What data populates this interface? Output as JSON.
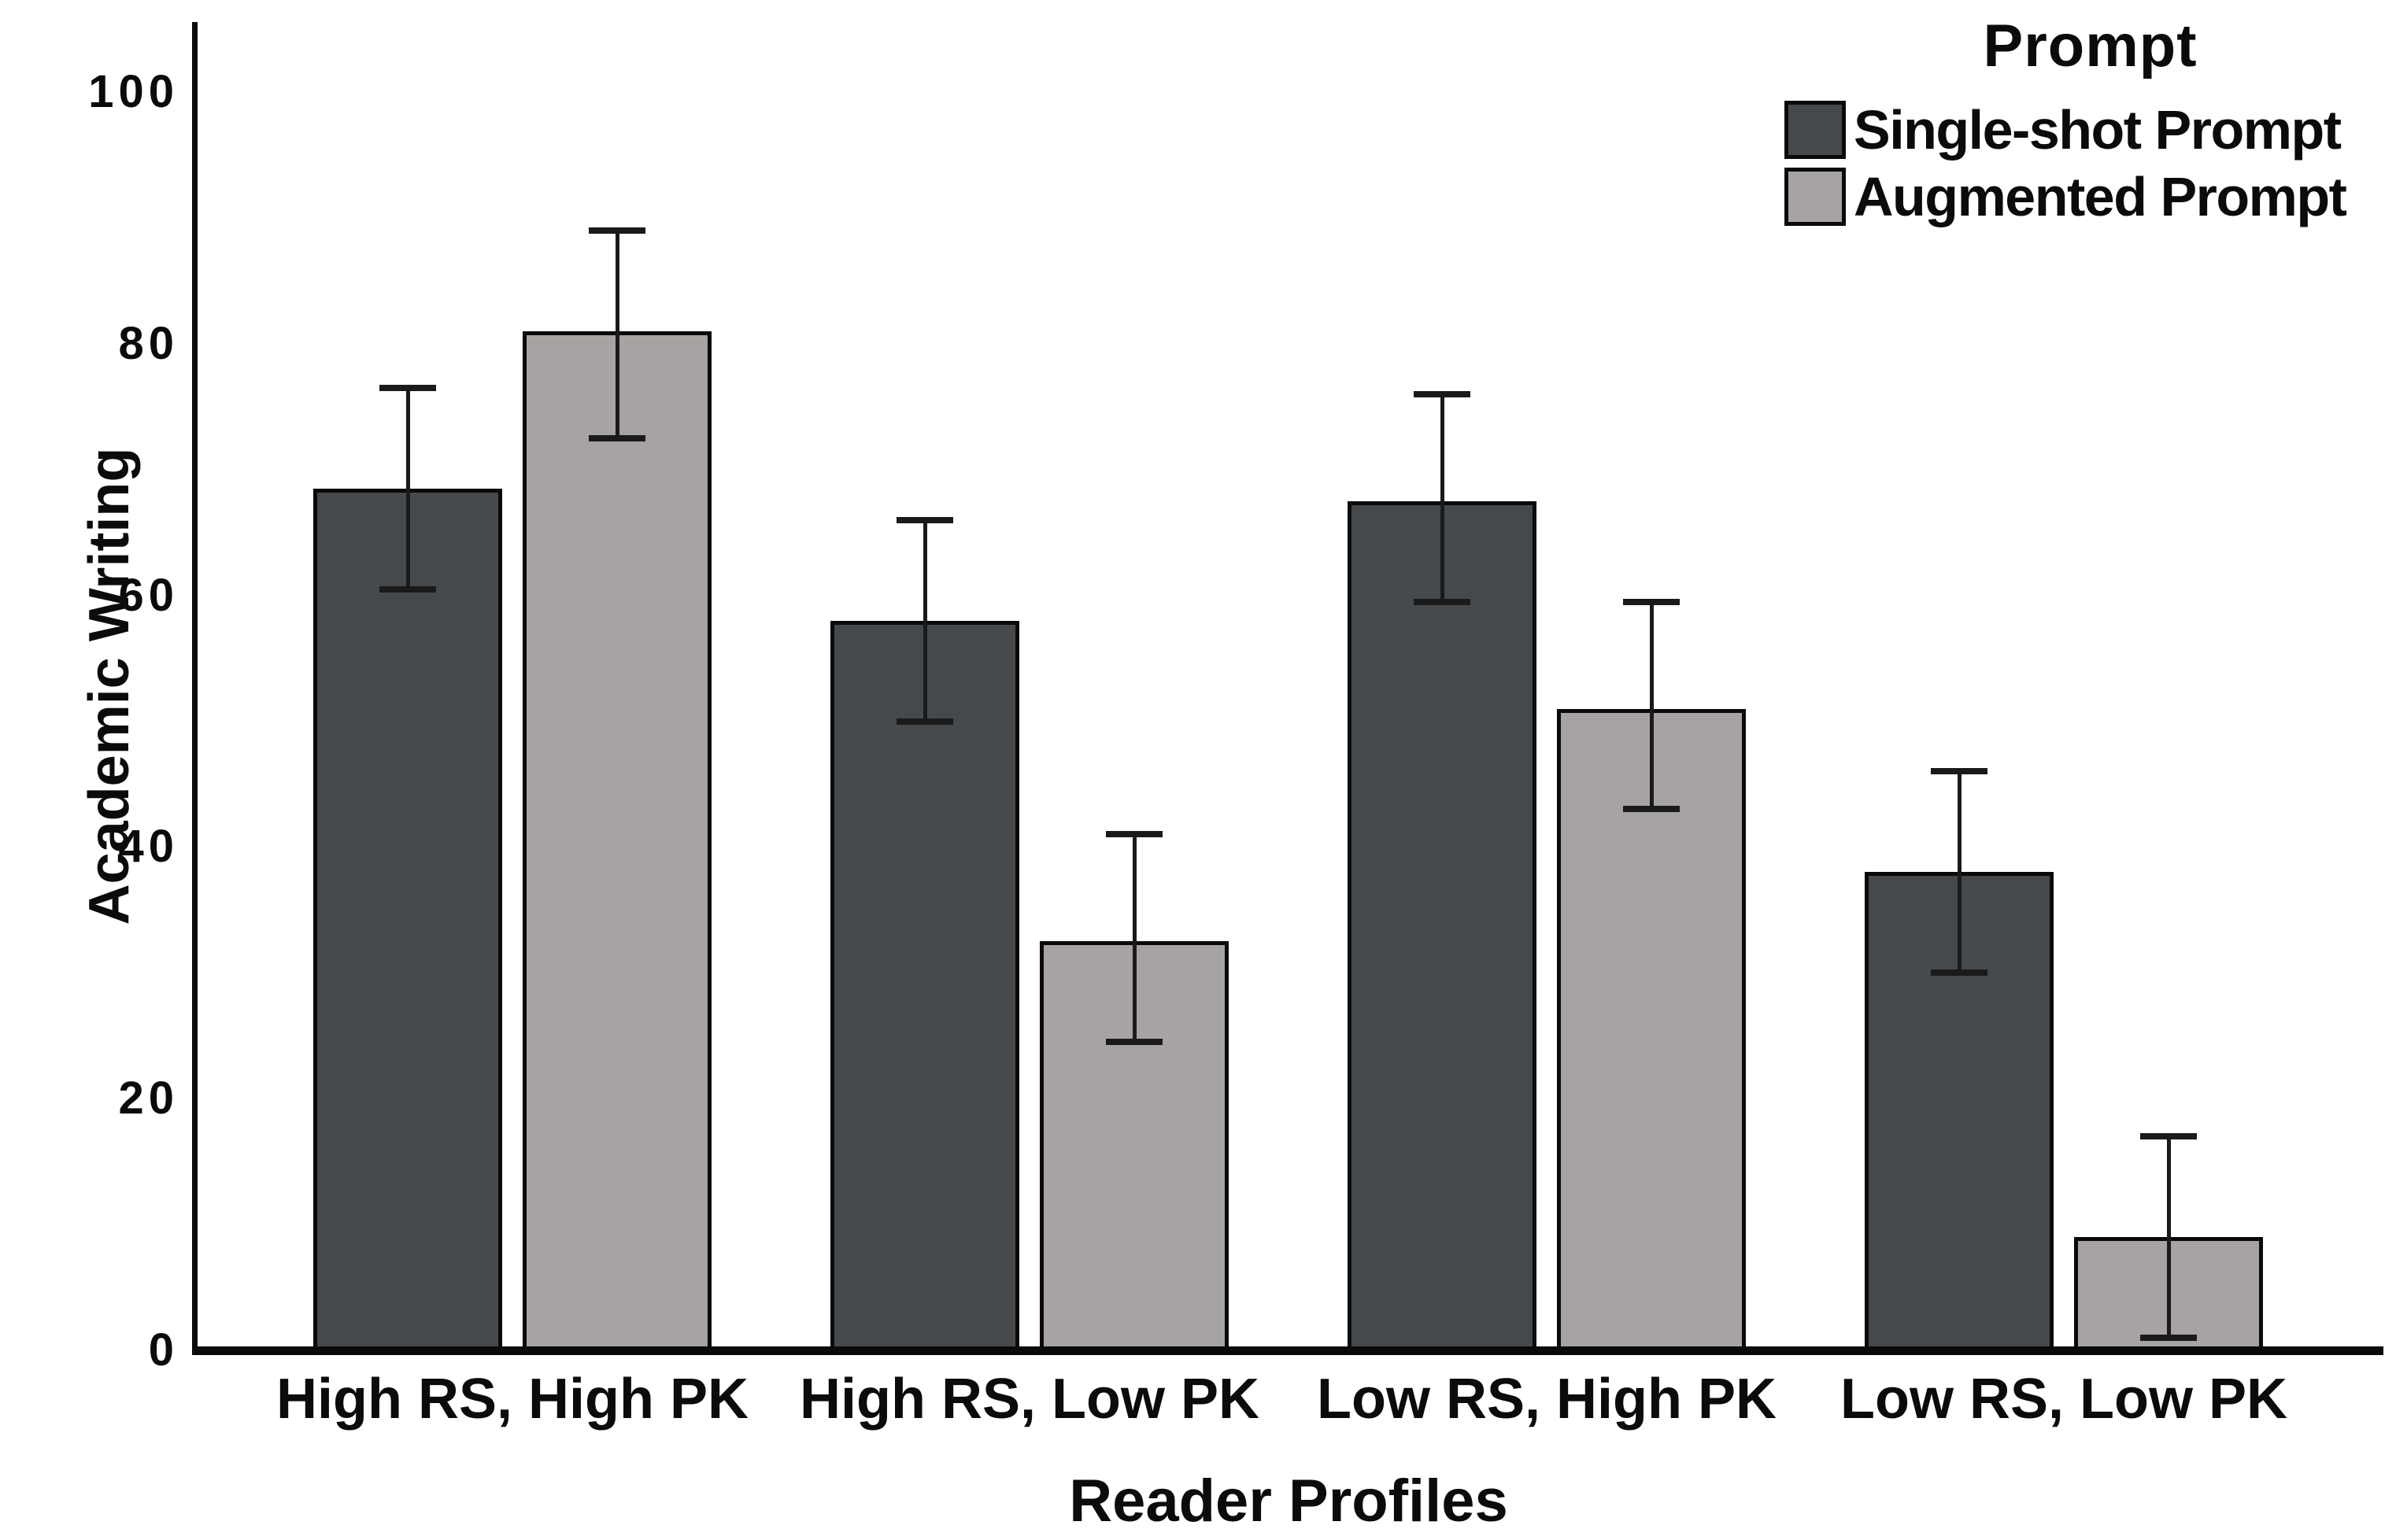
{
  "chart_data": {
    "type": "bar",
    "title": "",
    "xlabel": "Reader Profiles",
    "ylabel": "Academic Writing",
    "ylim": [
      0,
      100
    ],
    "yticks": [
      0,
      20,
      40,
      60,
      80,
      100
    ],
    "grid": false,
    "legend_title": "Prompt",
    "legend_position": "top-right",
    "categories": [
      "High RS, High PK",
      "High RS, Low PK",
      "Low RS, High PK",
      "Low RS, Low PK"
    ],
    "series": [
      {
        "name": "Single-shot Prompt",
        "color": "#45494c",
        "values": [
          68.5,
          58,
          67.5,
          38
        ],
        "error_low": [
          60.5,
          50,
          59.5,
          30
        ],
        "error_high": [
          76.5,
          66,
          76,
          46
        ]
      },
      {
        "name": "Augmented Prompt",
        "color": "#a6a3a2",
        "values": [
          81,
          32.5,
          51,
          9
        ],
        "error_low": [
          72.5,
          24.5,
          43,
          1
        ],
        "error_high": [
          89,
          41,
          59.5,
          17
        ]
      }
    ],
    "colors": {
      "bar_border": "#0a0a0a",
      "error_bar": "#1a1a1a",
      "axis": "#0a0a0a",
      "text": "#0b0b0b",
      "background": "#ffffff"
    }
  }
}
